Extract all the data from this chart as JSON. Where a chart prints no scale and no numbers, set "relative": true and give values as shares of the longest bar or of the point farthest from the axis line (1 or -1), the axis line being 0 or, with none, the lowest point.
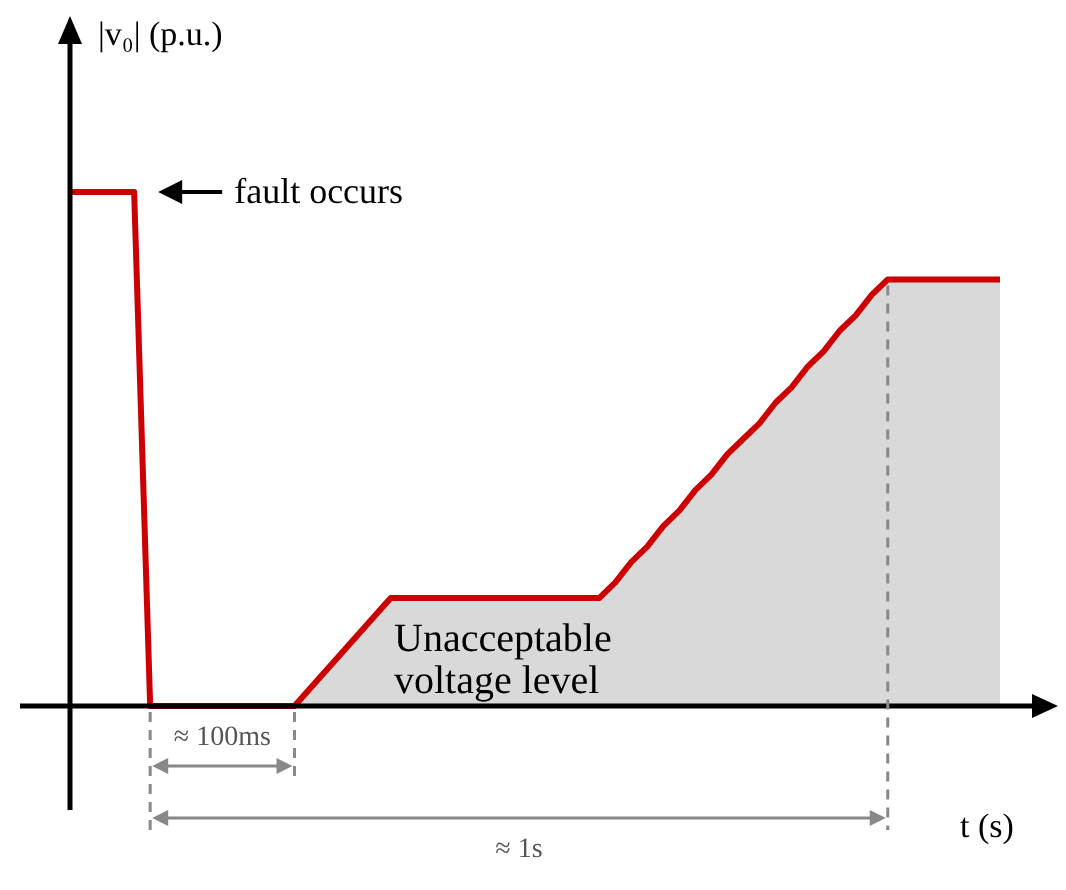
{
  "chart_data": {
    "type": "line",
    "relative": true,
    "xlabel": "t (s)",
    "ylabel": "|v₀| (p.u.)",
    "categories": [
      null,
      null,
      null,
      null,
      null,
      null,
      null,
      null,
      null,
      null,
      null,
      null,
      null,
      null,
      null,
      null,
      null,
      null,
      null,
      null,
      null,
      null,
      null,
      null,
      null,
      null,
      null,
      null,
      null,
      null,
      null,
      null,
      null,
      null,
      null,
      null,
      null,
      null,
      null,
      null,
      null,
      null,
      null,
      null,
      null,
      null,
      null,
      null,
      null,
      null,
      null,
      null,
      null,
      null,
      null,
      null,
      null,
      null,
      null
    ],
    "series": [
      {
        "type": "area",
        "color": "#d9d9d9",
        "values": [
          null,
          null,
          null,
          null,
          null,
          null,
          null,
          null,
          null,
          null,
          null,
          null,
          null,
          null,
          0,
          0.035,
          0.07,
          0.105,
          0.14,
          0.175,
          0.21,
          0.21,
          0.21,
          0.21,
          0.21,
          0.21,
          0.21,
          0.21,
          0.21,
          0.21,
          0.21,
          0.21,
          0.21,
          0.21,
          0.24,
          0.28,
          0.31,
          0.35,
          0.38,
          0.42,
          0.45,
          0.49,
          0.52,
          0.55,
          0.59,
          0.62,
          0.66,
          0.69,
          0.73,
          0.76,
          0.8,
          0.83,
          0.83,
          0.83,
          0.83,
          0.83,
          0.83,
          0.83,
          0.83
        ]
      },
      {
        "color": "#cc0000",
        "values": [
          1,
          1,
          1,
          1,
          1,
          0,
          0,
          0,
          0,
          0,
          0,
          0,
          0,
          0,
          0,
          0.035,
          0.07,
          0.105,
          0.14,
          0.175,
          0.21,
          0.21,
          0.21,
          0.21,
          0.21,
          0.21,
          0.21,
          0.21,
          0.21,
          0.21,
          0.21,
          0.21,
          0.21,
          0.21,
          0.24,
          0.28,
          0.31,
          0.35,
          0.38,
          0.42,
          0.45,
          0.49,
          0.52,
          0.55,
          0.59,
          0.62,
          0.66,
          0.69,
          0.73,
          0.76,
          0.8,
          0.83,
          0.83,
          0.83,
          0.83,
          0.83,
          0.83,
          0.83,
          0.83
        ]
      }
    ],
    "annotations": [
      "fault occurs",
      "Unacceptable voltage level",
      "≈ 100ms",
      "≈ 1s"
    ]
  }
}
